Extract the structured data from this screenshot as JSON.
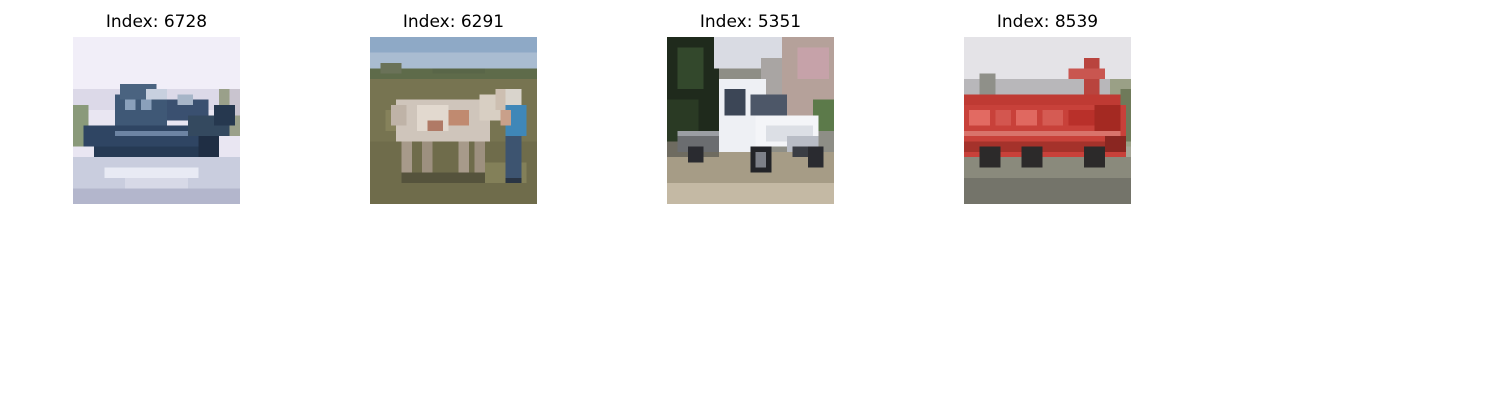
{
  "figure": {
    "panels": [
      {
        "title": "Index: 6728",
        "image": "boat-photo"
      },
      {
        "title": "Index: 6291",
        "image": "horse-with-person-photo"
      },
      {
        "title": "Index: 5351",
        "image": "white-truck-photo"
      },
      {
        "title": "Index: 8539",
        "image": "red-fire-truck-photo"
      }
    ]
  }
}
